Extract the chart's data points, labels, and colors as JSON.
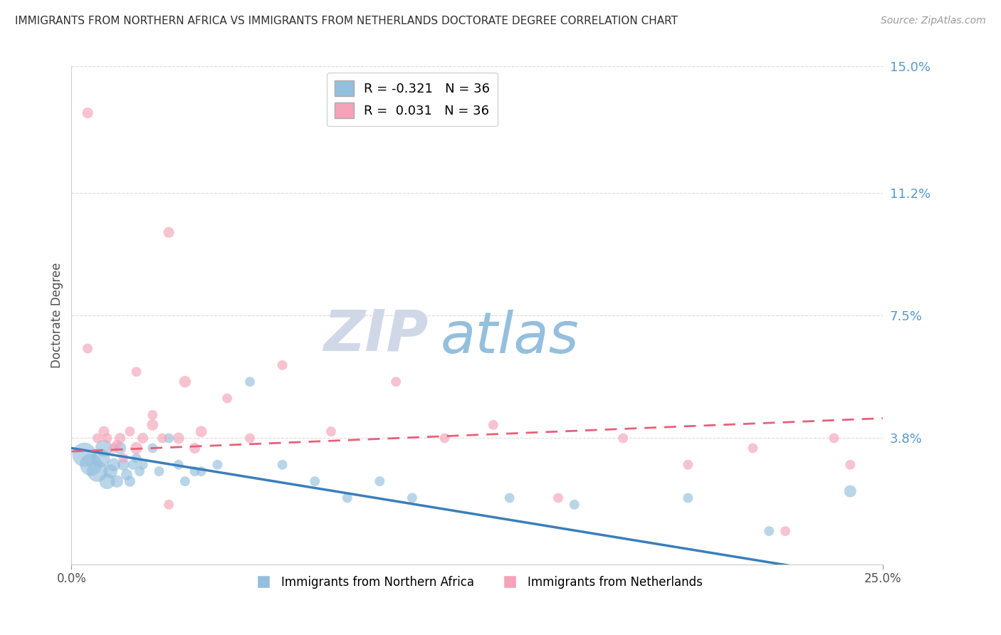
{
  "title": "IMMIGRANTS FROM NORTHERN AFRICA VS IMMIGRANTS FROM NETHERLANDS DOCTORATE DEGREE CORRELATION CHART",
  "source": "Source: ZipAtlas.com",
  "ylabel": "Doctorate Degree",
  "legend_label1": "Immigrants from Northern Africa",
  "legend_label2": "Immigrants from Netherlands",
  "R1": -0.321,
  "N1": 36,
  "R2": 0.031,
  "N2": 36,
  "xlim": [
    0.0,
    0.25
  ],
  "ylim": [
    0.0,
    0.15
  ],
  "ytick_vals": [
    0.038,
    0.075,
    0.112,
    0.15
  ],
  "ytick_labels": [
    "3.8%",
    "7.5%",
    "11.2%",
    "15.0%"
  ],
  "color_blue": "#94bfdd",
  "color_pink": "#f4a3b8",
  "line_blue": "#3a7fba",
  "line_pink": "#e8607a",
  "watermark_zip": "ZIP",
  "watermark_atlas": "atlas",
  "watermark_color_zip": "#d0d8e8",
  "watermark_color_atlas": "#94bfdd",
  "blue_scatter_x": [
    0.004,
    0.006,
    0.008,
    0.009,
    0.01,
    0.011,
    0.012,
    0.013,
    0.014,
    0.015,
    0.016,
    0.017,
    0.018,
    0.019,
    0.02,
    0.021,
    0.022,
    0.025,
    0.027,
    0.03,
    0.033,
    0.035,
    0.038,
    0.04,
    0.045,
    0.055,
    0.065,
    0.075,
    0.085,
    0.095,
    0.105,
    0.135,
    0.155,
    0.19,
    0.215,
    0.24
  ],
  "blue_scatter_y": [
    0.033,
    0.03,
    0.028,
    0.032,
    0.035,
    0.025,
    0.028,
    0.03,
    0.025,
    0.035,
    0.03,
    0.027,
    0.025,
    0.03,
    0.032,
    0.028,
    0.03,
    0.035,
    0.028,
    0.038,
    0.03,
    0.025,
    0.028,
    0.028,
    0.03,
    0.055,
    0.03,
    0.025,
    0.02,
    0.025,
    0.02,
    0.02,
    0.018,
    0.02,
    0.01,
    0.022
  ],
  "blue_scatter_size": [
    600,
    500,
    450,
    350,
    300,
    250,
    200,
    180,
    160,
    150,
    140,
    130,
    120,
    110,
    100,
    100,
    100,
    100,
    100,
    100,
    100,
    100,
    100,
    100,
    100,
    100,
    100,
    100,
    100,
    100,
    100,
    100,
    100,
    100,
    100,
    150
  ],
  "pink_scatter_x": [
    0.005,
    0.008,
    0.01,
    0.011,
    0.013,
    0.014,
    0.015,
    0.016,
    0.018,
    0.02,
    0.022,
    0.025,
    0.028,
    0.03,
    0.033,
    0.035,
    0.038,
    0.04,
    0.048,
    0.055,
    0.065,
    0.08,
    0.1,
    0.115,
    0.13,
    0.15,
    0.17,
    0.19,
    0.21,
    0.22,
    0.235,
    0.24,
    0.005,
    0.02,
    0.025,
    0.03
  ],
  "pink_scatter_y": [
    0.136,
    0.038,
    0.04,
    0.038,
    0.035,
    0.036,
    0.038,
    0.032,
    0.04,
    0.035,
    0.038,
    0.042,
    0.038,
    0.1,
    0.038,
    0.055,
    0.035,
    0.04,
    0.05,
    0.038,
    0.06,
    0.04,
    0.055,
    0.038,
    0.042,
    0.02,
    0.038,
    0.03,
    0.035,
    0.01,
    0.038,
    0.03,
    0.065,
    0.058,
    0.045,
    0.018
  ],
  "pink_scatter_size": [
    120,
    100,
    120,
    100,
    100,
    100,
    120,
    100,
    100,
    150,
    120,
    130,
    100,
    120,
    130,
    140,
    120,
    130,
    100,
    100,
    100,
    100,
    100,
    100,
    100,
    100,
    100,
    100,
    100,
    100,
    100,
    100,
    100,
    100,
    100,
    100
  ],
  "grid_color": "#cccccc",
  "background_color": "#ffffff",
  "title_color": "#303030",
  "axis_label_color": "#505050",
  "tick_color_right": "#5599cc",
  "blue_line_start_y": 0.035,
  "blue_line_end_y": -0.005,
  "pink_line_start_y": 0.034,
  "pink_line_end_y": 0.044
}
